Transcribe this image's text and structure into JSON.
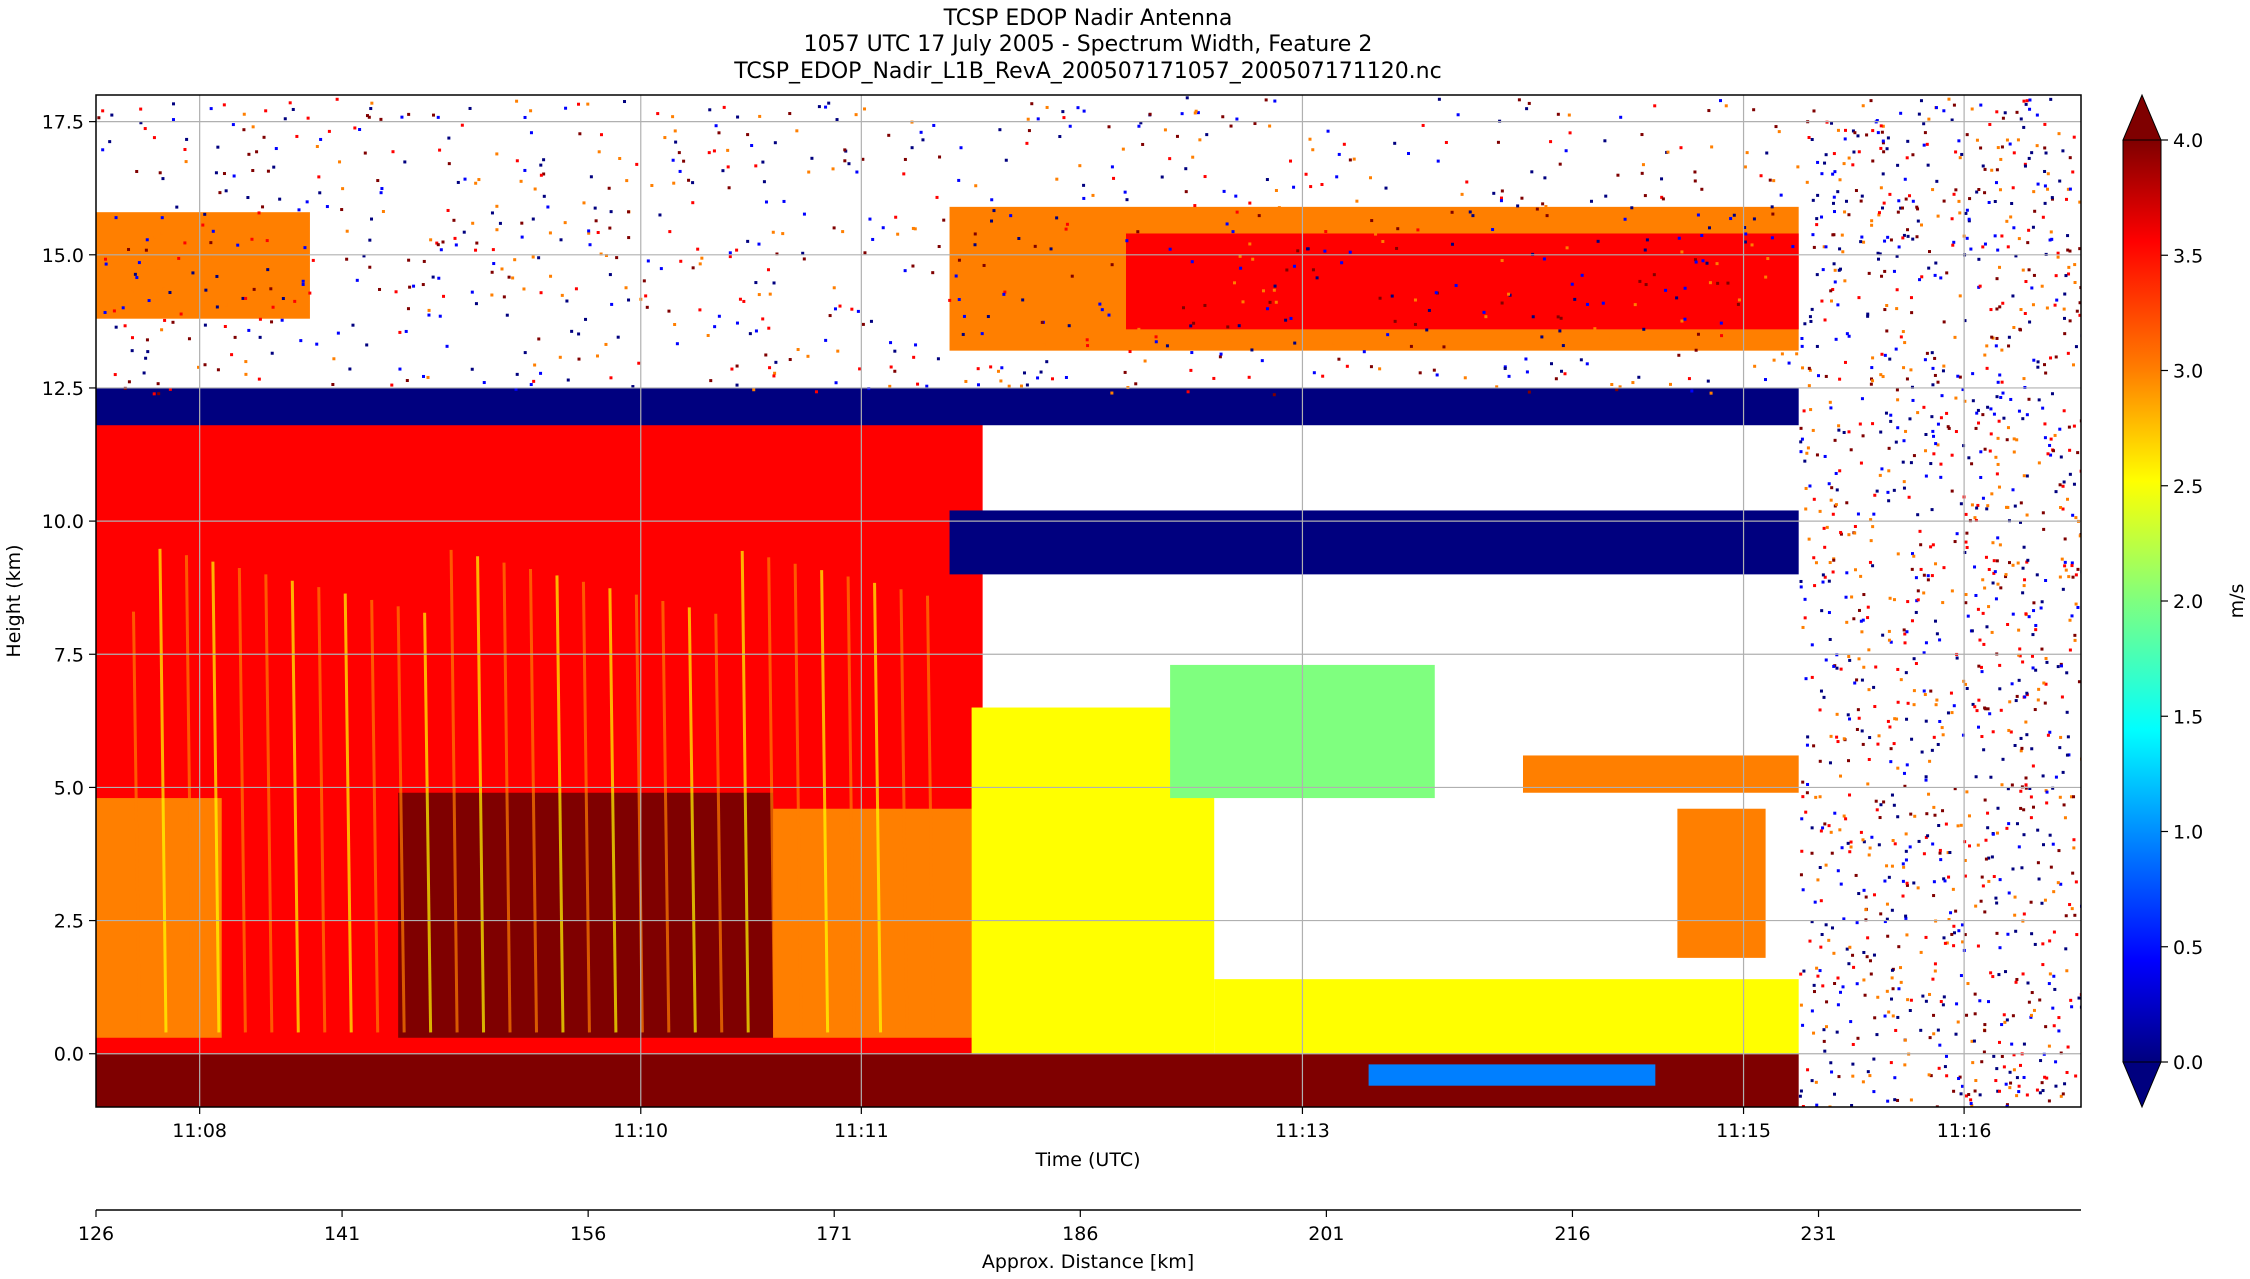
{
  "chart_data": {
    "type": "heatmap",
    "title_lines": [
      "TCSP EDOP Nadir Antenna",
      "1057 UTC 17 July 2005 - Spectrum Width, Feature 2",
      "TCSP_EDOP_Nadir_L1B_RevA_200507171057_200507171120.nc"
    ],
    "xlabel": "Time (UTC)",
    "ylabel": "Height (km)",
    "x_range_minutes": [
      7.53,
      16.53
    ],
    "x_ticks": [
      {
        "value": 8.0,
        "label": "11:08"
      },
      {
        "value": 10.0,
        "label": "11:10"
      },
      {
        "value": 11.0,
        "label": "11:11"
      },
      {
        "value": 13.0,
        "label": "11:13"
      },
      {
        "value": 15.0,
        "label": "11:15"
      },
      {
        "value": 16.0,
        "label": "11:16"
      }
    ],
    "ylim": [
      -1.0,
      18.0
    ],
    "y_ticks": [
      {
        "value": 0.0,
        "label": "0.0"
      },
      {
        "value": 2.5,
        "label": "2.5"
      },
      {
        "value": 5.0,
        "label": "5.0"
      },
      {
        "value": 7.5,
        "label": "7.5"
      },
      {
        "value": 10.0,
        "label": "10.0"
      },
      {
        "value": 12.5,
        "label": "12.5"
      },
      {
        "value": 15.0,
        "label": "15.0"
      },
      {
        "value": 17.5,
        "label": "17.5"
      }
    ],
    "grid": true,
    "secondary_axis": {
      "label": "Approx. Distance [km]",
      "range": [
        126,
        247
      ],
      "ticks": [
        {
          "value": 126,
          "label": "126"
        },
        {
          "value": 141,
          "label": "141"
        },
        {
          "value": 156,
          "label": "156"
        },
        {
          "value": 171,
          "label": "171"
        },
        {
          "value": 186,
          "label": "186"
        },
        {
          "value": 201,
          "label": "201"
        },
        {
          "value": 216,
          "label": "216"
        },
        {
          "value": 231,
          "label": "231"
        }
      ]
    },
    "colorbar": {
      "label": "m/s",
      "range": [
        0.0,
        4.0
      ],
      "colormap": "jet",
      "extend": "both",
      "ticks": [
        {
          "value": 0.0,
          "label": "0.0"
        },
        {
          "value": 0.5,
          "label": "0.5"
        },
        {
          "value": 1.0,
          "label": "1.0"
        },
        {
          "value": 1.5,
          "label": "1.5"
        },
        {
          "value": 2.0,
          "label": "2.0"
        },
        {
          "value": 2.5,
          "label": "2.5"
        },
        {
          "value": 3.0,
          "label": "3.0"
        },
        {
          "value": 3.5,
          "label": "3.5"
        },
        {
          "value": 4.0,
          "label": "4.0"
        }
      ],
      "colors": [
        "#00007f",
        "#0000ff",
        "#007fff",
        "#00ffff",
        "#7fff7f",
        "#ffff00",
        "#ff7f00",
        "#ff0000",
        "#7f0000"
      ]
    },
    "data_end_minute": 15.25
  }
}
